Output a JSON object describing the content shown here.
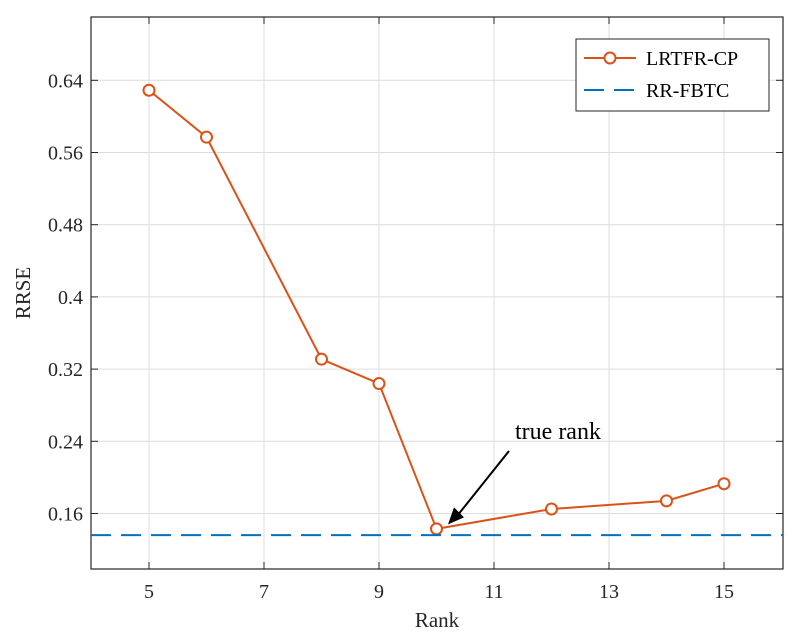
{
  "chart_data": {
    "type": "line",
    "xlabel": "Rank",
    "ylabel": "RRSE",
    "xlim": [
      4,
      18
    ],
    "ylim": [
      0.105,
      0.71
    ],
    "x_ticks": [
      5,
      7,
      9,
      11,
      13,
      15
    ],
    "y_ticks": [
      0.16,
      0.24,
      0.32,
      0.4,
      0.48,
      0.56,
      0.64
    ],
    "y_tick_labels": [
      "0.16",
      "0.24",
      "0.32",
      "0.4",
      "0.48",
      "0.56",
      "0.64"
    ],
    "grid": true,
    "legend_position": "top-right",
    "series": [
      {
        "name": "LRTFR-CP",
        "style": "solid-line-circle-markers",
        "color": "#d95319",
        "x": [
          5,
          6,
          8,
          9,
          10,
          12,
          14,
          15
        ],
        "y": [
          0.629,
          0.577,
          0.331,
          0.304,
          0.143,
          0.165,
          0.174,
          0.193
        ]
      },
      {
        "name": "RR-FBTC",
        "style": "dashed-line",
        "color": "#0072bd",
        "x": [
          4,
          18
        ],
        "y": [
          0.136,
          0.136
        ]
      }
    ],
    "annotations": [
      {
        "text": "true rank",
        "arrow_to": {
          "x": 10.2,
          "y": 0.148
        }
      }
    ]
  }
}
